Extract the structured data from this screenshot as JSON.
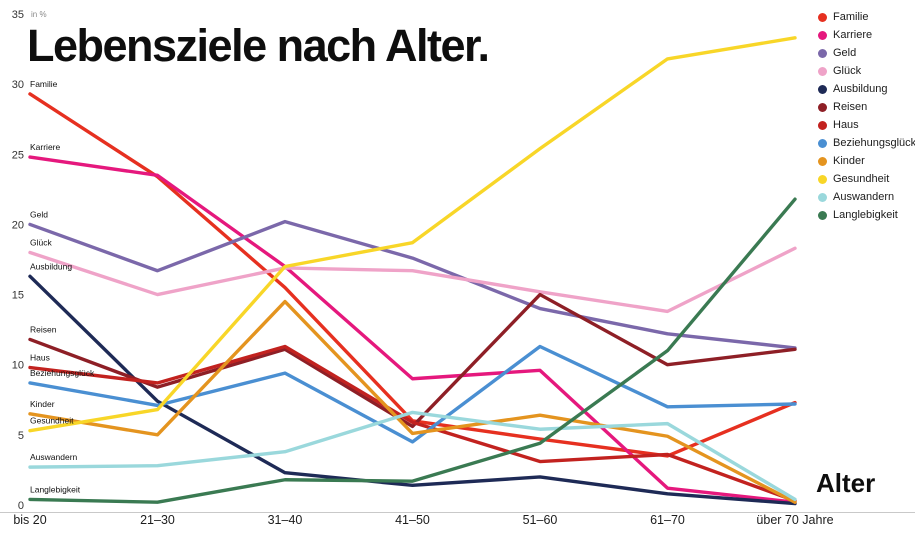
{
  "title": "Lebensziele nach Alter.",
  "x_axis_title": "Alter",
  "y_axis_unit": "in %",
  "chart_data": {
    "type": "line",
    "title": "Lebensziele nach Alter.",
    "xlabel": "Alter",
    "ylabel": "in %",
    "ylim": [
      0,
      35
    ],
    "y_ticks": [
      0,
      5,
      10,
      15,
      20,
      25,
      30,
      35
    ],
    "grid": false,
    "legend_position": "top-right",
    "categories": [
      "bis 20",
      "21–30",
      "31–40",
      "41–50",
      "51–60",
      "61–70",
      "über 70 Jahre"
    ],
    "series": [
      {
        "name": "Familie",
        "color": "#e63020",
        "values": [
          29.3,
          23.4,
          15.5,
          6.0,
          4.7,
          3.5,
          7.3
        ]
      },
      {
        "name": "Karriere",
        "color": "#e5187d",
        "values": [
          24.8,
          23.5,
          17.0,
          9.0,
          9.6,
          1.2,
          0.2
        ]
      },
      {
        "name": "Geld",
        "color": "#7b68aa",
        "values": [
          20.0,
          16.7,
          20.2,
          17.6,
          14.0,
          12.2,
          11.2
        ]
      },
      {
        "name": "Glück",
        "color": "#efa3c8",
        "values": [
          18.0,
          15.0,
          16.9,
          16.7,
          15.2,
          13.8,
          18.3
        ]
      },
      {
        "name": "Ausbildung",
        "color": "#1e2a56",
        "values": [
          16.3,
          7.4,
          2.3,
          1.4,
          2.0,
          0.8,
          0.1
        ]
      },
      {
        "name": "Reisen",
        "color": "#8e1f26",
        "values": [
          11.8,
          8.4,
          11.1,
          5.6,
          15.0,
          10.0,
          11.1
        ]
      },
      {
        "name": "Haus",
        "color": "#c2221f",
        "values": [
          9.8,
          8.7,
          11.3,
          5.9,
          3.1,
          3.6,
          0.3
        ]
      },
      {
        "name": "Beziehungsglück",
        "color": "#4a8fd2",
        "values": [
          8.7,
          7.1,
          9.4,
          4.5,
          11.3,
          7.0,
          7.2
        ]
      },
      {
        "name": "Kinder",
        "color": "#e4941f",
        "values": [
          6.5,
          5.0,
          14.5,
          5.1,
          6.4,
          4.9,
          0.2
        ]
      },
      {
        "name": "Gesundheit",
        "color": "#f8d628",
        "values": [
          5.3,
          6.8,
          17.0,
          18.7,
          25.4,
          31.8,
          33.3
        ]
      },
      {
        "name": "Auswandern",
        "color": "#9ad8dc",
        "values": [
          2.7,
          2.8,
          3.8,
          6.6,
          5.4,
          5.8,
          0.4
        ]
      },
      {
        "name": "Langlebigkeit",
        "color": "#3a7a52",
        "values": [
          0.4,
          0.2,
          1.8,
          1.7,
          4.4,
          11.0,
          21.8
        ]
      }
    ]
  }
}
